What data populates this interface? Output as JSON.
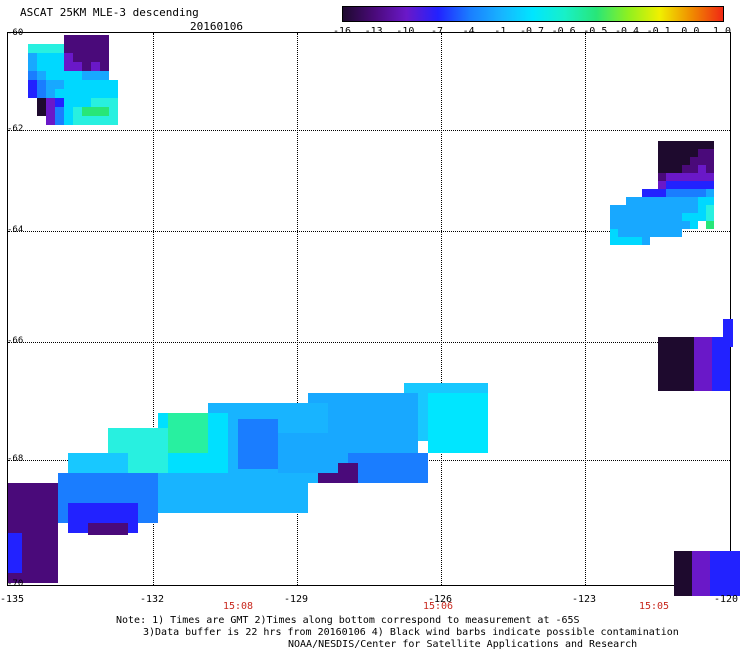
{
  "header": {
    "title": "ASCAT 25KM MLE-3 descending",
    "date": "20160106"
  },
  "colorbar": {
    "labels": [
      "-16",
      "-13",
      "-10",
      "-7",
      "-4",
      "-1",
      "-0.7",
      "-0.6",
      "-0.5",
      "-0.4",
      "-0.1",
      "0.0",
      "1.0"
    ],
    "colors": [
      "#1e0a2e",
      "#4a0a7a",
      "#6a18c8",
      "#2222ff",
      "#1a7dff",
      "#18b4ff",
      "#00e6ff",
      "#18f0c8",
      "#28e678",
      "#8ef020",
      "#f0f000",
      "#f08c00",
      "#f02814"
    ]
  },
  "map": {
    "lat_labels": [
      "-60",
      "-62",
      "-64",
      "-66",
      "-68",
      "-70"
    ],
    "lon_labels": [
      "-135",
      "-132",
      "-129",
      "-126",
      "-123",
      "-120"
    ],
    "time_labels": [
      "15:08",
      "15:06",
      "15:05"
    ]
  },
  "footer": {
    "line1": "Note: 1) Times are GMT 2)Times along bottom correspond to measurement at -65S",
    "line2": "3)Data buffer is 22 hrs from 20160106 4) Black wind barbs indicate possible contamination",
    "line3": "NOAA/NESDIS/Center for Satellite Applications and Research"
  }
}
